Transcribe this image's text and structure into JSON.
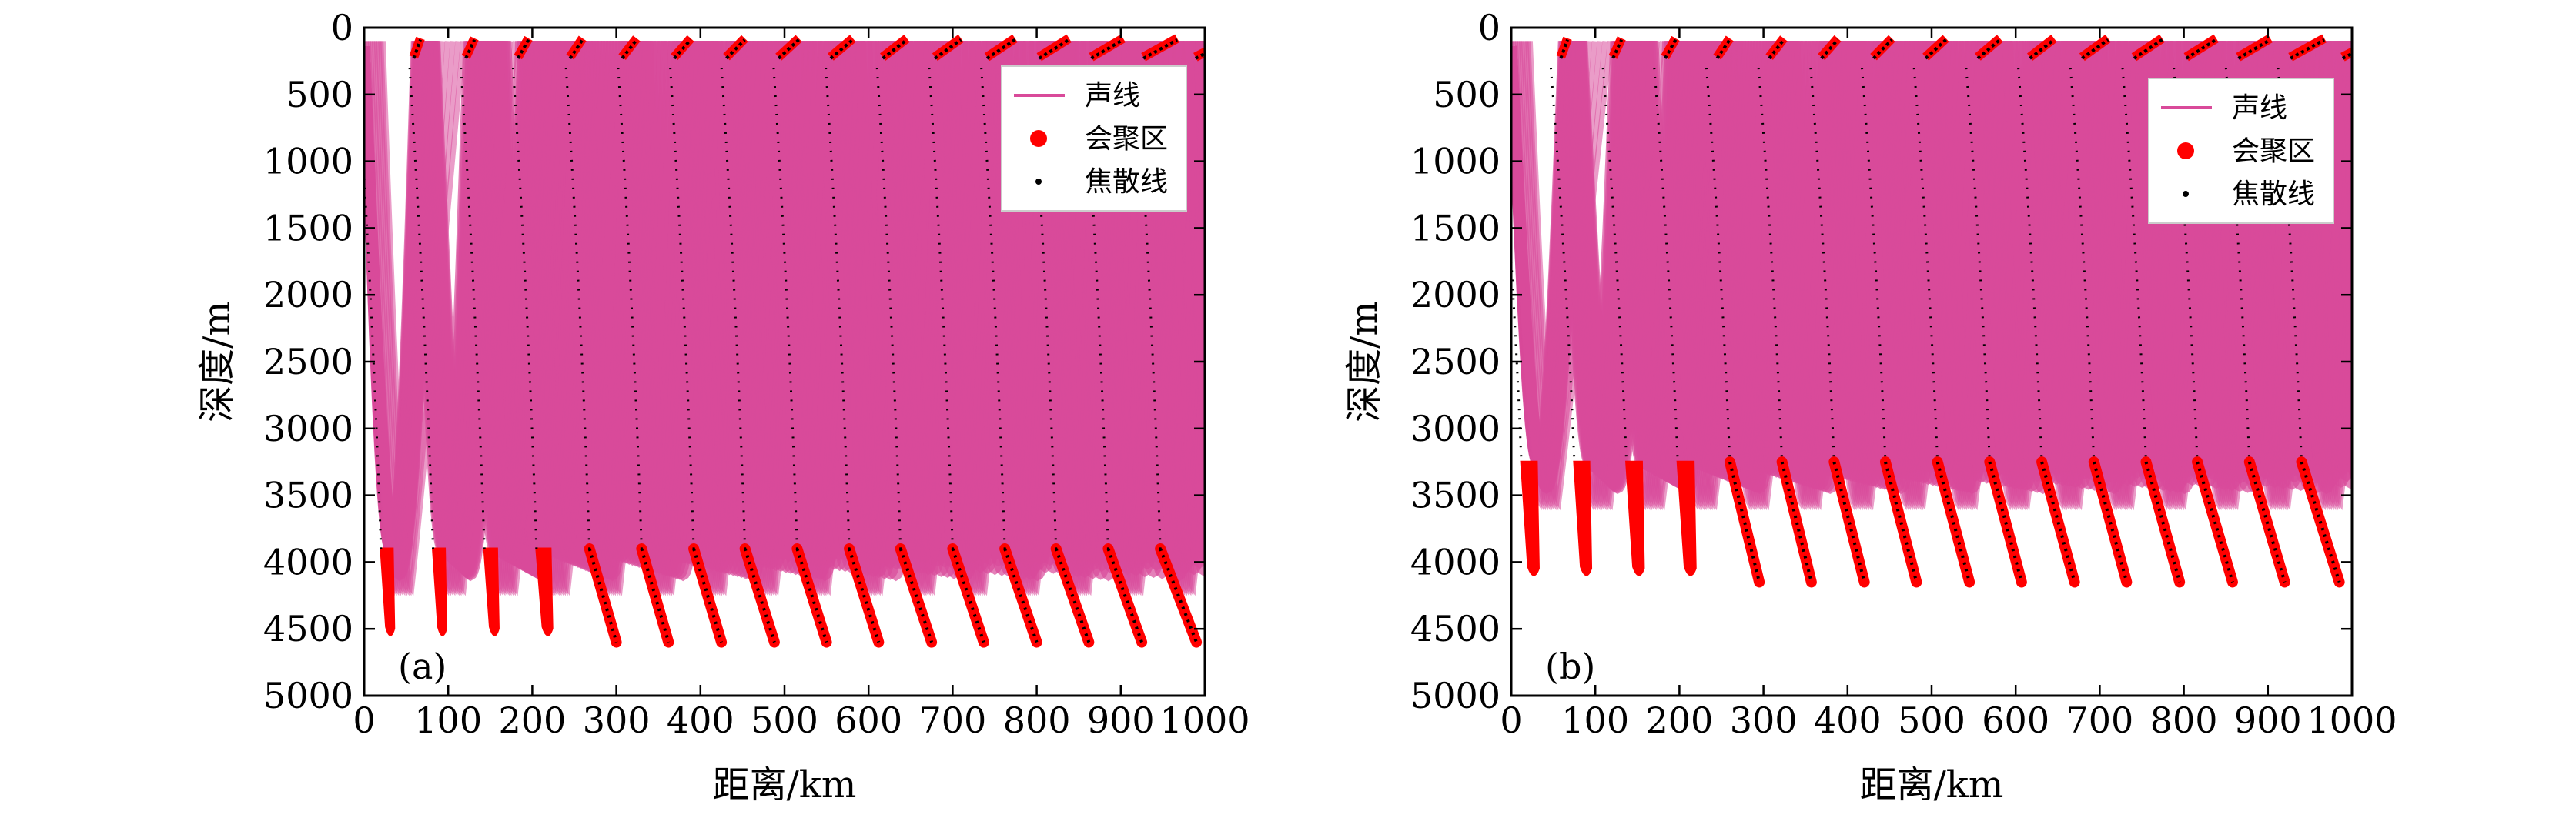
{
  "colors": {
    "ray": "#d94a9a",
    "convergence": "#ff0000",
    "caustic": "#000000",
    "frame": "#000000"
  },
  "chart_data": [
    {
      "type": "line",
      "panel_label": "(a)",
      "xlabel": "距离/km",
      "ylabel": "深度/m",
      "xlim": [
        0,
        1000
      ],
      "ylim": [
        0,
        5000
      ],
      "y_inverted": true,
      "xticks": [
        0,
        100,
        200,
        300,
        400,
        500,
        600,
        700,
        800,
        900,
        1000
      ],
      "yticks": [
        0,
        500,
        1000,
        1500,
        2000,
        2500,
        3000,
        3500,
        4000,
        4500,
        5000
      ],
      "grid": false,
      "legend": {
        "position": "top-right",
        "entries": [
          {
            "label": "声线",
            "marker": "line",
            "series": "rays"
          },
          {
            "label": "会聚区",
            "marker": "dot",
            "series": "convergence_zones"
          },
          {
            "label": "焦散线",
            "marker": "small-dot",
            "series": "caustics"
          }
        ]
      },
      "cycle_km": 62,
      "surface_depth_m": 100,
      "bottom_turn_depth_m": 3900,
      "series": [
        {
          "name": "声线",
          "kind": "rays"
        },
        {
          "name": "会聚区",
          "kind": "convergence_zones",
          "zones": [
            {
              "x": [
                20,
                45
              ],
              "depth": [
                3900,
                4600
              ]
            },
            {
              "x": [
                82,
                107
              ],
              "depth": [
                3900,
                4600
              ]
            },
            {
              "x": [
                143,
                170
              ],
              "depth": [
                3900,
                4600
              ]
            },
            {
              "x": [
                205,
                235
              ],
              "depth": [
                3900,
                4600
              ]
            },
            {
              "x": [
                268,
                300
              ],
              "depth": [
                3900,
                4600
              ]
            },
            {
              "x": [
                330,
                362
              ],
              "depth": [
                3900,
                4600
              ]
            },
            {
              "x": [
                392,
                425
              ],
              "depth": [
                3900,
                4600
              ]
            },
            {
              "x": [
                453,
                488
              ],
              "depth": [
                3900,
                4600
              ]
            },
            {
              "x": [
                515,
                550
              ],
              "depth": [
                3900,
                4600
              ]
            },
            {
              "x": [
                577,
                612
              ],
              "depth": [
                3900,
                4600
              ]
            },
            {
              "x": [
                638,
                675
              ],
              "depth": [
                3900,
                4600
              ]
            },
            {
              "x": [
                700,
                737
              ],
              "depth": [
                3900,
                4600
              ]
            },
            {
              "x": [
                762,
                800
              ],
              "depth": [
                3900,
                4600
              ]
            },
            {
              "x": [
                823,
                862
              ],
              "depth": [
                3900,
                4600
              ]
            },
            {
              "x": [
                885,
                925
              ],
              "depth": [
                3900,
                4600
              ]
            },
            {
              "x": [
                947,
                990
              ],
              "depth": [
                3900,
                4600
              ]
            }
          ]
        },
        {
          "name": "焦散线",
          "kind": "caustics"
        }
      ]
    },
    {
      "type": "line",
      "panel_label": "(b)",
      "xlabel": "距离/km",
      "ylabel": "深度/m",
      "xlim": [
        0,
        1000
      ],
      "ylim": [
        0,
        5000
      ],
      "y_inverted": true,
      "xticks": [
        0,
        100,
        200,
        300,
        400,
        500,
        600,
        700,
        800,
        900,
        1000
      ],
      "yticks": [
        0,
        500,
        1000,
        1500,
        2000,
        2500,
        3000,
        3500,
        4000,
        4500,
        5000
      ],
      "grid": false,
      "legend": {
        "position": "top-right",
        "entries": [
          {
            "label": "声线",
            "marker": "line",
            "series": "rays"
          },
          {
            "label": "会聚区",
            "marker": "dot",
            "series": "convergence_zones"
          },
          {
            "label": "焦散线",
            "marker": "small-dot",
            "series": "caustics"
          }
        ]
      },
      "cycle_km": 62,
      "surface_depth_m": 100,
      "bottom_turn_depth_m": 3250,
      "series": [
        {
          "name": "声线",
          "kind": "rays"
        },
        {
          "name": "会聚区",
          "kind": "convergence_zones",
          "zones": [
            {
              "x": [
                12,
                45
              ],
              "depth": [
                3250,
                4150
              ]
            },
            {
              "x": [
                75,
                107
              ],
              "depth": [
                3250,
                4150
              ]
            },
            {
              "x": [
                137,
                170
              ],
              "depth": [
                3250,
                4150
              ]
            },
            {
              "x": [
                198,
                232
              ],
              "depth": [
                3250,
                4150
              ]
            },
            {
              "x": [
                260,
                295
              ],
              "depth": [
                3250,
                4150
              ]
            },
            {
              "x": [
                322,
                357
              ],
              "depth": [
                3250,
                4150
              ]
            },
            {
              "x": [
                384,
                420
              ],
              "depth": [
                3250,
                4150
              ]
            },
            {
              "x": [
                445,
                482
              ],
              "depth": [
                3250,
                4150
              ]
            },
            {
              "x": [
                507,
                545
              ],
              "depth": [
                3250,
                4150
              ]
            },
            {
              "x": [
                569,
                607
              ],
              "depth": [
                3250,
                4150
              ]
            },
            {
              "x": [
                631,
                670
              ],
              "depth": [
                3250,
                4150
              ]
            },
            {
              "x": [
                693,
                732
              ],
              "depth": [
                3250,
                4150
              ]
            },
            {
              "x": [
                755,
                795
              ],
              "depth": [
                3250,
                4150
              ]
            },
            {
              "x": [
                816,
                858
              ],
              "depth": [
                3250,
                4150
              ]
            },
            {
              "x": [
                878,
                920
              ],
              "depth": [
                3250,
                4150
              ]
            },
            {
              "x": [
                940,
                985
              ],
              "depth": [
                3250,
                4150
              ]
            }
          ]
        },
        {
          "name": "焦散线",
          "kind": "caustics"
        }
      ]
    }
  ]
}
